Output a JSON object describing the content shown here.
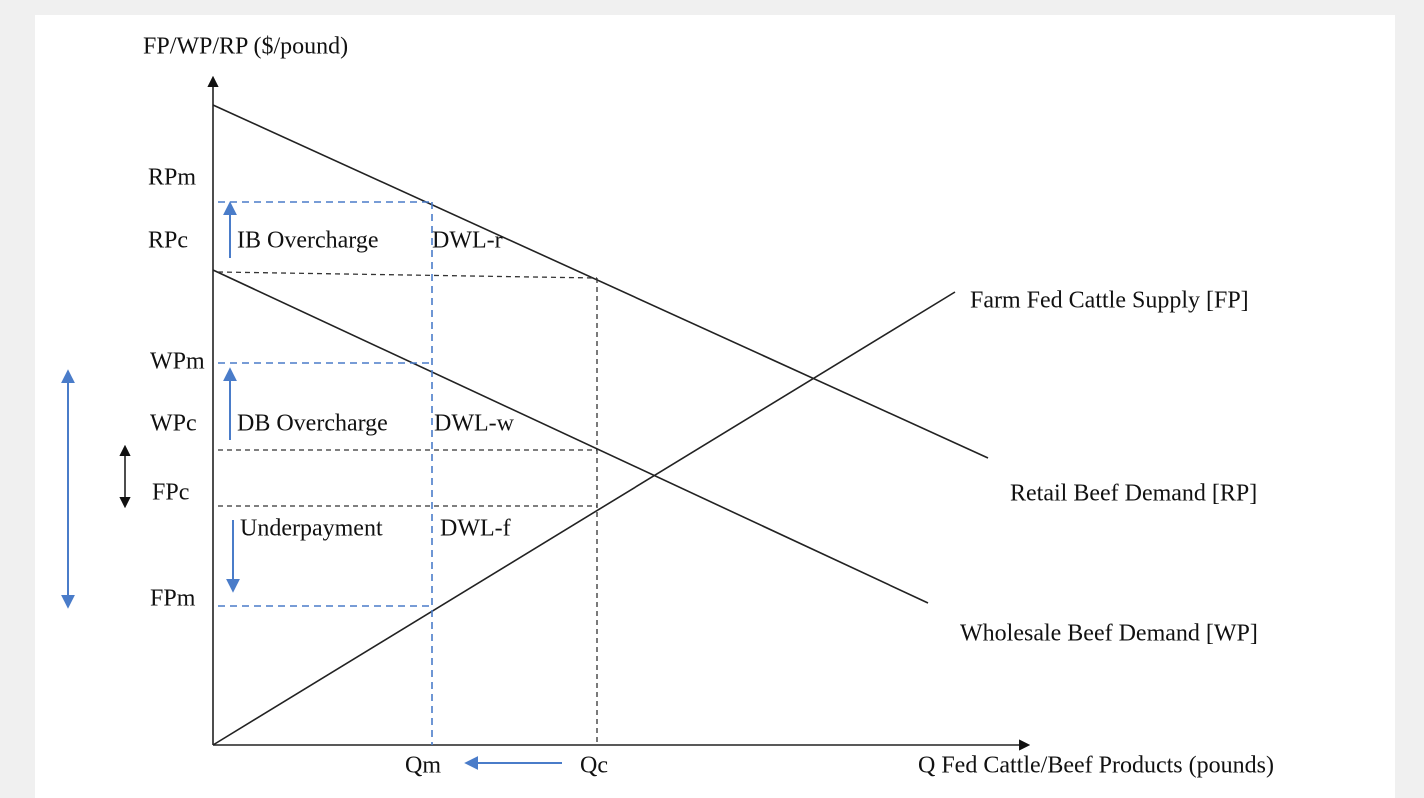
{
  "axes": {
    "y_label": "FP/WP/RP ($/pound)",
    "x_label": "Q Fed Cattle/Beef Products (pounds)"
  },
  "price_labels": [
    "RPm",
    "RPc",
    "WPm",
    "WPc",
    "FPc",
    "FPm"
  ],
  "region_labels": [
    "IB Overcharge",
    "DWL-r",
    "DB Overcharge",
    "DWL-w",
    "Underpayment",
    "DWL-f"
  ],
  "curve_labels": [
    "Farm Fed Cattle Supply [FP]",
    "Retail Beef Demand [RP]",
    "Wholesale Beef Demand [WP]"
  ],
  "quantity_labels": [
    "Qm",
    "Qc"
  ]
}
